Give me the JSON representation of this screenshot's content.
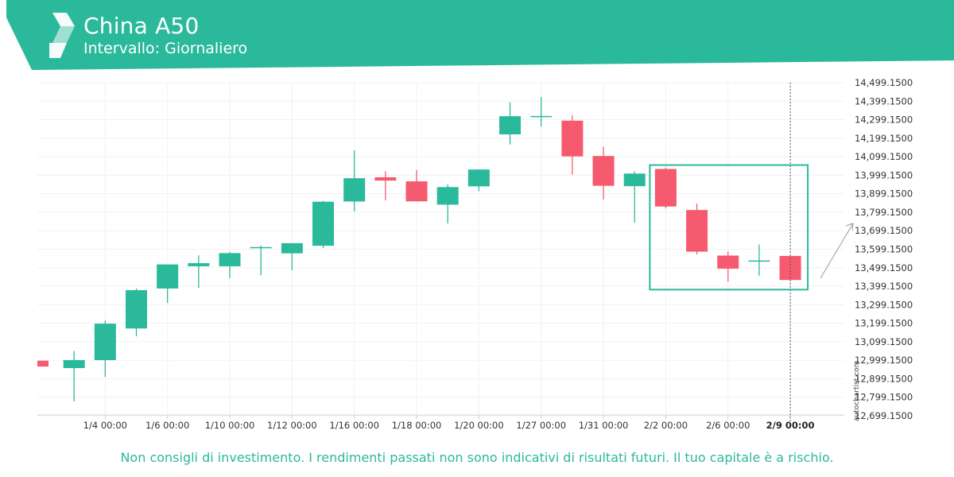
{
  "header": {
    "title": "China A50",
    "subtitle": "Intervallo: Giornaliero",
    "logo_icon": "autochartist-logo-icon",
    "brand_color": "#2bb99b"
  },
  "footer": {
    "disclaimer": "Non consigli di investimento. I rendimenti passati non sono indicativi di risultati futuri. Il tuo capitale è a rischio."
  },
  "watermark": "autochartist.com",
  "chart_data": {
    "type": "candlestick",
    "up_color": "#2bb99b",
    "down_color": "#f65a6e",
    "pattern_box_color": "#2bb99b",
    "ylim": [
      12699.15,
      14499.15
    ],
    "y_ticks": [
      "14,499.1500",
      "14,399.1500",
      "14,299.1500",
      "14,199.1500",
      "14,099.1500",
      "13,999.1500",
      "13,899.1500",
      "13,799.1500",
      "13,699.1500",
      "13,599.1500",
      "13,499.1500",
      "13,399.1500",
      "13,299.1500",
      "13,199.1500",
      "13,099.1500",
      "12,999.1500",
      "12,899.1500",
      "12,799.1500",
      "12,699.1500"
    ],
    "x_ticks": [
      "1/4 00:00",
      "1/6 00:00",
      "1/10 00:00",
      "1/12 00:00",
      "1/16 00:00",
      "1/18 00:00",
      "1/20 00:00",
      "1/27 00:00",
      "1/31 00:00",
      "2/2 00:00",
      "2/6 00:00",
      "2/9 00:00"
    ],
    "highlighted_x_tick": "2/9 00:00",
    "candles": [
      {
        "open": 12997,
        "high": 12997,
        "low": 12965,
        "close": 12965
      },
      {
        "open": 12957,
        "high": 13049,
        "low": 12777,
        "close": 13000
      },
      {
        "open": 13000,
        "high": 13214,
        "low": 12909,
        "close": 13197
      },
      {
        "open": 13171,
        "high": 13387,
        "low": 13129,
        "close": 13378
      },
      {
        "open": 13387,
        "high": 13517,
        "low": 13309,
        "close": 13517
      },
      {
        "open": 13507,
        "high": 13566,
        "low": 13390,
        "close": 13524
      },
      {
        "open": 13507,
        "high": 13584,
        "low": 13443,
        "close": 13578
      },
      {
        "open": 13608,
        "high": 13619,
        "low": 13459,
        "close": 13608
      },
      {
        "open": 13577,
        "high": 13625,
        "low": 13486,
        "close": 13632
      },
      {
        "open": 13618,
        "high": 13861,
        "low": 13605,
        "close": 13856
      },
      {
        "open": 13857,
        "high": 14133,
        "low": 13804,
        "close": 13983
      },
      {
        "open": 13988,
        "high": 14021,
        "low": 13863,
        "close": 13970
      },
      {
        "open": 13966,
        "high": 14027,
        "low": 13866,
        "close": 13858
      },
      {
        "open": 13840,
        "high": 13949,
        "low": 13739,
        "close": 13935
      },
      {
        "open": 13939,
        "high": 14031,
        "low": 13913,
        "close": 14030
      },
      {
        "open": 14220,
        "high": 14393,
        "low": 14165,
        "close": 14318
      },
      {
        "open": 14316,
        "high": 14421,
        "low": 14262,
        "close": 14316
      },
      {
        "open": 14294,
        "high": 14324,
        "low": 14003,
        "close": 14101
      },
      {
        "open": 14103,
        "high": 14153,
        "low": 13868,
        "close": 13942
      },
      {
        "open": 13940,
        "high": 14020,
        "low": 13743,
        "close": 14008
      },
      {
        "open": 14033,
        "high": 14041,
        "low": 13820,
        "close": 13830
      },
      {
        "open": 13811,
        "high": 13846,
        "low": 13572,
        "close": 13586
      },
      {
        "open": 13565,
        "high": 13587,
        "low": 13424,
        "close": 13494
      },
      {
        "open": 13535,
        "high": 13625,
        "low": 13456,
        "close": 13535
      },
      {
        "open": 13563,
        "high": 13563,
        "low": 13433,
        "close": 13433
      }
    ],
    "pattern_box": {
      "start_index": 20,
      "end_index": 24,
      "top": 14054,
      "bottom": 13381
    }
  }
}
